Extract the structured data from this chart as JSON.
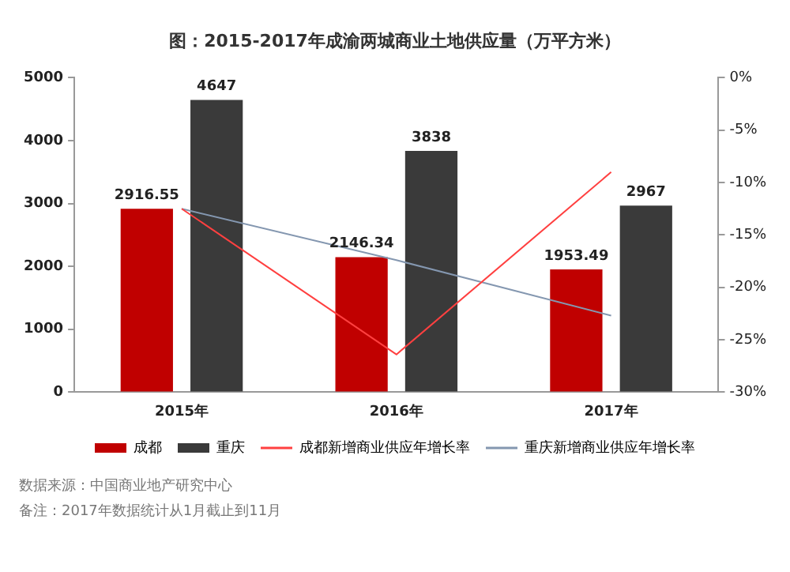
{
  "chart_data": {
    "type": "bar",
    "title": "图：2015-2017年成渝两城商业土地供应量（万平方米）",
    "categories": [
      "2015年",
      "2016年",
      "2017年"
    ],
    "series": [
      {
        "name": "成都",
        "color": "#c00000",
        "values": [
          2916.55,
          2146.34,
          1953.49
        ],
        "value_labels": [
          "2916.55",
          "2146.34",
          "1953.49"
        ]
      },
      {
        "name": "重庆",
        "color": "#3a3a3a",
        "values": [
          4647,
          3838,
          2967
        ],
        "value_labels": [
          "4647",
          "3838",
          "2967"
        ]
      },
      {
        "name": "成都新增商业供应年增长率",
        "type": "line",
        "axis": "y2",
        "color": "#ff4040",
        "values": [
          -12.5,
          -26.4,
          -9.0
        ]
      },
      {
        "name": "重庆新增商业供应年增长率",
        "type": "line",
        "axis": "y2",
        "color": "#8497b0",
        "values": [
          -12.5,
          -17.4,
          -22.7
        ]
      }
    ],
    "ylim": [
      0,
      5000
    ],
    "yticks": [
      0,
      1000,
      2000,
      3000,
      4000,
      5000
    ],
    "y2lim": [
      -30,
      0
    ],
    "y2ticks": [
      {
        "value": 0,
        "label": "0%"
      },
      {
        "value": -5,
        "label": "-5%"
      },
      {
        "value": -10,
        "label": "-10%"
      },
      {
        "value": -15,
        "label": "-15%"
      },
      {
        "value": -20,
        "label": "-20%"
      },
      {
        "value": -25,
        "label": "-25%"
      },
      {
        "value": -30,
        "label": "-30%"
      }
    ],
    "grid": false,
    "legend": "bottom",
    "marker": "none",
    "line_style": "solid",
    "annotations": [
      "数据来源：中国商业地产研究中心",
      "备注：2017年数据统计从1月截止到11月"
    ]
  }
}
